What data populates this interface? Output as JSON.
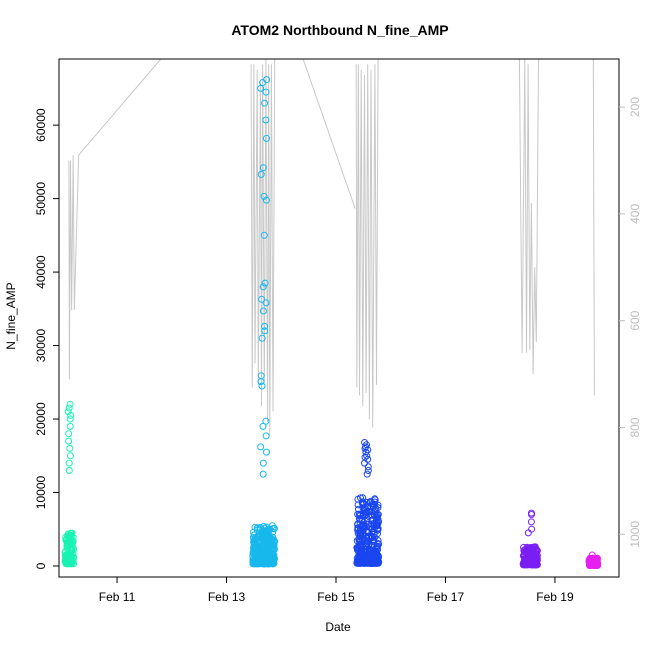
{
  "chart_data": {
    "type": "scatter",
    "title": "ATOM2 Northbound N_fine_AMP",
    "xlabel": "Date",
    "ylabel": "N_fine_AMP",
    "x_ticks": [
      "Feb 11",
      "Feb 13",
      "Feb 15",
      "Feb 17",
      "Feb 19"
    ],
    "x_tick_days": [
      11,
      13,
      15,
      17,
      19
    ],
    "xlim_days": [
      9.94,
      20.17
    ],
    "y_ticks": [
      0,
      10000,
      20000,
      30000,
      40000,
      50000,
      60000
    ],
    "ylim": [
      -1500,
      69000
    ],
    "right_axis": {
      "ticks": [
        200,
        400,
        600,
        800,
        1000
      ],
      "range": [
        110,
        1080
      ],
      "reversed": true,
      "color": "#bdbdbd"
    },
    "grid": false,
    "series": [
      {
        "color": "#19f3b5",
        "x_range": [
          10.05,
          10.21
        ],
        "median": 1500,
        "spread": 4200,
        "outliers": [
          22000,
          21500,
          21000,
          20500,
          20000,
          19000,
          18000,
          17000,
          16000,
          15000,
          14000,
          13000
        ]
      },
      {
        "color": "#18b8ec",
        "x_range": [
          13.48,
          13.88
        ],
        "median": 1500,
        "spread": 5200,
        "outliers": [
          66200,
          65800,
          65000,
          64500,
          63000,
          60700,
          58200,
          54200,
          53300,
          50300,
          49800,
          45000,
          38500,
          38000,
          36300,
          35800,
          34700,
          32600,
          32000,
          31000,
          25900,
          25100,
          24500,
          19700,
          19000,
          17700,
          16200,
          15500,
          14000,
          12500
        ]
      },
      {
        "color": "#1a46f0",
        "x_range": [
          15.38,
          15.78
        ],
        "median": 1800,
        "spread": 9000,
        "outliers": [
          16500,
          16200,
          16000,
          15800,
          15500,
          15000,
          14800,
          14500,
          14000,
          13500,
          13000,
          12500,
          16800
        ]
      },
      {
        "color": "#7a1ff3",
        "x_range": [
          18.42,
          18.68
        ],
        "median": 800,
        "spread": 2500,
        "outliers": [
          7200,
          7000,
          6000,
          5000,
          4500
        ]
      },
      {
        "color": "#e61ff0",
        "x_range": [
          19.62,
          19.78
        ],
        "median": 400,
        "spread": 1000,
        "outliers": [
          1500
        ]
      }
    ],
    "depth_trace": {
      "color": "#c8c8c8",
      "lines": [
        [
          [
            10.12,
            300
          ],
          [
            10.13,
            710
          ],
          [
            10.15,
            300
          ],
          [
            10.17,
            580
          ],
          [
            10.2,
            290
          ],
          [
            10.22,
            580
          ],
          [
            10.3,
            290
          ]
        ],
        [
          [
            10.3,
            290
          ],
          [
            11.8,
            110
          ],
          [
            13.3,
            110
          ]
        ],
        [
          [
            13.45,
            120
          ],
          [
            13.47,
            725
          ],
          [
            13.5,
            120
          ],
          [
            13.52,
            680
          ],
          [
            13.56,
            130
          ],
          [
            13.58,
            720
          ],
          [
            13.62,
            150
          ],
          [
            13.64,
            760
          ],
          [
            13.66,
            120
          ],
          [
            13.69,
            715
          ],
          [
            13.72,
            110
          ],
          [
            13.75,
            790
          ],
          [
            13.77,
            120
          ],
          [
            13.79,
            815
          ],
          [
            13.82,
            120
          ],
          [
            13.85,
            770
          ],
          [
            13.88,
            110
          ]
        ],
        [
          [
            14.4,
            110
          ],
          [
            15.35,
            390
          ]
        ],
        [
          [
            15.37,
            120
          ],
          [
            15.38,
            725
          ],
          [
            15.41,
            120
          ],
          [
            15.43,
            740
          ],
          [
            15.46,
            130
          ],
          [
            15.49,
            760
          ],
          [
            15.52,
            140
          ],
          [
            15.55,
            735
          ],
          [
            15.58,
            120
          ],
          [
            15.61,
            785
          ],
          [
            15.64,
            130
          ],
          [
            15.67,
            800
          ],
          [
            15.71,
            120
          ],
          [
            15.74,
            720
          ],
          [
            15.77,
            110
          ]
        ],
        [
          [
            18.35,
            110
          ],
          [
            18.4,
            660
          ],
          [
            18.45,
            110
          ],
          [
            18.48,
            660
          ],
          [
            18.51,
            120
          ],
          [
            18.54,
            655
          ],
          [
            18.57,
            380
          ],
          [
            18.6,
            700
          ],
          [
            18.63,
            500
          ],
          [
            18.66,
            640
          ],
          [
            18.7,
            110
          ]
        ],
        [
          [
            19.7,
            110
          ],
          [
            19.72,
            740
          ]
        ]
      ]
    }
  }
}
